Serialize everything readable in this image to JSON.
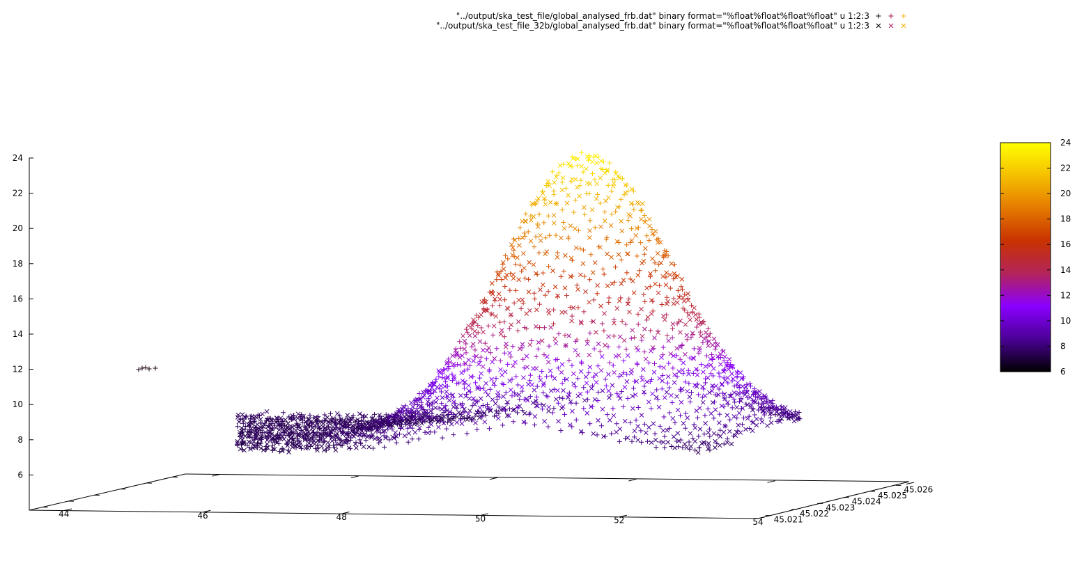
{
  "chart_data": {
    "type": "scatter",
    "title": "",
    "xlabel": "",
    "ylabel": "",
    "zlabel": "",
    "x_ticks": [
      "44",
      "46",
      "48",
      "50",
      "52",
      "54"
    ],
    "y_ticks": [
      "45.021",
      "45.022",
      "45.023",
      "45.024",
      "45.025",
      "45.026"
    ],
    "z_ticks": [
      "6",
      "8",
      "10",
      "12",
      "14",
      "16",
      "18",
      "20",
      "22",
      "24"
    ],
    "colorbar_ticks": [
      "6",
      "8",
      "10",
      "12",
      "14",
      "16",
      "18",
      "20",
      "22",
      "24"
    ],
    "xlim": [
      43.5,
      54
    ],
    "ylim": [
      45.0205,
      45.0265
    ],
    "zlim": [
      4,
      24
    ],
    "color_range": [
      6,
      24
    ],
    "palette": [
      "#000000",
      "#4b0096",
      "#8a00ff",
      "#b3245a",
      "#c83200",
      "#e57a00",
      "#f5c000",
      "#ffff00"
    ],
    "legend_position": "top-center",
    "series": [
      {
        "name": "\"../output/ska_test_file/global_analysed_frb.dat\" binary format=\"%float%float%float%float\" u 1:2:3",
        "marker": "plus",
        "x_range": [
          44.4,
          53.2
        ],
        "y_center": 45.0235,
        "x_center": 50.4,
        "peak_value": 23.5,
        "baseline_value": 7.5
      },
      {
        "name": "\"../output/ska_test_file_32b/global_analysed_frb.dat\" binary format=\"%float%float%float%float\" u 1:2:3",
        "marker": "cross",
        "x_range": [
          44.4,
          53.2
        ],
        "y_center": 45.0235,
        "x_center": 50.4,
        "peak_value": 23.5,
        "baseline_value": 7.5
      }
    ]
  }
}
